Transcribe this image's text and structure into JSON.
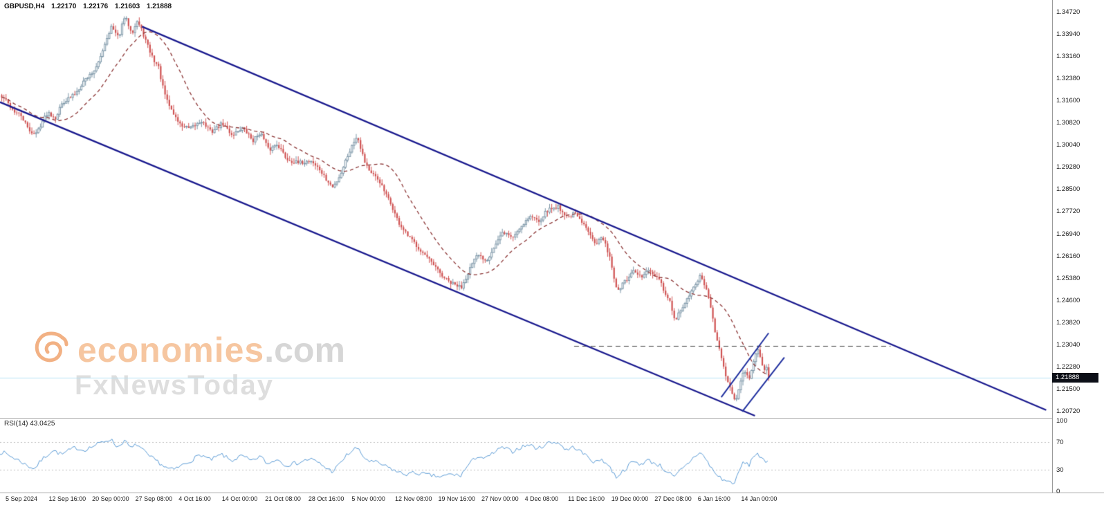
{
  "header": {
    "symbol_timeframe": "GBPUSD,H4",
    "open": "1.22170",
    "high": "1.22176",
    "low": "1.21603",
    "close": "1.21888"
  },
  "watermark": {
    "brand": "economies",
    "suffix": ".com",
    "tagline": "FxNewsToday"
  },
  "colors": {
    "bull_candle": "#7d97a8",
    "bull_fill": "#ffffff",
    "bear_candle": "#cf5252",
    "ma_line": "#8b3434",
    "channel_line": "#1a1a8e",
    "trendline": "#1e2e9e",
    "hline_dashed": "#474747",
    "rsi_line": "#5b9bd5",
    "rsi_level": "#bbbbbb",
    "current_price_line": "#b7e1f3",
    "badge_bg": "#0c0f17",
    "axis_text": "#1a1a1a"
  },
  "chart_data": {
    "type": "bar",
    "subtype": "candlestick",
    "title": "GBPUSD H4 with descending channel, dashed moving average and RSI(14)",
    "symbol": "GBPUSD",
    "timeframe": "H4",
    "current_price_label": "1.21888",
    "ohlc_current": {
      "open": 1.2217,
      "high": 1.22176,
      "low": 1.21603,
      "close": 1.21888
    },
    "y_range": [
      1.2072,
      1.3472
    ],
    "y_tick_labels": [
      "1.34720",
      "1.33940",
      "1.33160",
      "1.32380",
      "1.31600",
      "1.30820",
      "1.30040",
      "1.29280",
      "1.28500",
      "1.27720",
      "1.26940",
      "1.26160",
      "1.25380",
      "1.24600",
      "1.23820",
      "1.23040",
      "1.22280",
      "1.21500",
      "1.20720"
    ],
    "x_tick_labels": [
      "5 Sep 2024",
      "12 Sep 16:00",
      "20 Sep 00:00",
      "27 Sep 08:00",
      "4 Oct 16:00",
      "14 Oct 00:00",
      "21 Oct 08:00",
      "28 Oct 16:00",
      "5 Nov 00:00",
      "12 Nov 08:00",
      "19 Nov 16:00",
      "27 Nov 00:00",
      "4 Dec 08:00",
      "11 Dec 16:00",
      "19 Dec 00:00",
      "27 Dec 08:00",
      "6 Jan 16:00",
      "14 Jan 00:00"
    ],
    "x_span_frac": 0.7315,
    "price_path": [
      [
        0.003,
        1.317
      ],
      [
        0.012,
        1.3125
      ],
      [
        0.02,
        1.3105
      ],
      [
        0.026,
        1.306
      ],
      [
        0.033,
        1.304
      ],
      [
        0.04,
        1.309
      ],
      [
        0.045,
        1.312
      ],
      [
        0.052,
        1.31
      ],
      [
        0.059,
        1.3155
      ],
      [
        0.066,
        1.317
      ],
      [
        0.072,
        1.319
      ],
      [
        0.079,
        1.323
      ],
      [
        0.086,
        1.3255
      ],
      [
        0.092,
        1.328
      ],
      [
        0.098,
        1.335
      ],
      [
        0.105,
        1.342
      ],
      [
        0.112,
        1.338
      ],
      [
        0.118,
        1.3455
      ],
      [
        0.125,
        1.34
      ],
      [
        0.13,
        1.344
      ],
      [
        0.136,
        1.339
      ],
      [
        0.141,
        1.334
      ],
      [
        0.146,
        1.33
      ],
      [
        0.15,
        1.328
      ],
      [
        0.154,
        1.321
      ],
      [
        0.158,
        1.316
      ],
      [
        0.165,
        1.311
      ],
      [
        0.171,
        1.3075
      ],
      [
        0.18,
        1.306
      ],
      [
        0.191,
        1.309
      ],
      [
        0.2,
        1.305
      ],
      [
        0.211,
        1.308
      ],
      [
        0.22,
        1.304
      ],
      [
        0.23,
        1.3065
      ],
      [
        0.24,
        1.302
      ],
      [
        0.247,
        1.305
      ],
      [
        0.255,
        1.2985
      ],
      [
        0.263,
        1.301
      ],
      [
        0.272,
        1.2955
      ],
      [
        0.283,
        1.294
      ],
      [
        0.295,
        1.295
      ],
      [
        0.303,
        1.292
      ],
      [
        0.31,
        1.288
      ],
      [
        0.316,
        1.2855
      ],
      [
        0.323,
        1.29
      ],
      [
        0.329,
        1.296
      ],
      [
        0.339,
        1.304
      ],
      [
        0.346,
        1.295
      ],
      [
        0.352,
        1.2905
      ],
      [
        0.36,
        1.288
      ],
      [
        0.365,
        1.284
      ],
      [
        0.372,
        1.279
      ],
      [
        0.378,
        1.2735
      ],
      [
        0.386,
        1.269
      ],
      [
        0.395,
        1.2655
      ],
      [
        0.403,
        1.262
      ],
      [
        0.411,
        1.2585
      ],
      [
        0.42,
        1.2545
      ],
      [
        0.428,
        1.252
      ],
      [
        0.438,
        1.2505
      ],
      [
        0.446,
        1.257
      ],
      [
        0.454,
        1.262
      ],
      [
        0.462,
        1.26
      ],
      [
        0.47,
        1.265
      ],
      [
        0.478,
        1.27
      ],
      [
        0.487,
        1.268
      ],
      [
        0.495,
        1.272
      ],
      [
        0.503,
        1.2755
      ],
      [
        0.512,
        1.274
      ],
      [
        0.52,
        1.2775
      ],
      [
        0.53,
        1.279
      ],
      [
        0.539,
        1.275
      ],
      [
        0.546,
        1.2765
      ],
      [
        0.553,
        1.273
      ],
      [
        0.56,
        1.27
      ],
      [
        0.566,
        1.266
      ],
      [
        0.572,
        1.268
      ],
      [
        0.579,
        1.262
      ],
      [
        0.586,
        1.249
      ],
      [
        0.595,
        1.253
      ],
      [
        0.602,
        1.256
      ],
      [
        0.609,
        1.254
      ],
      [
        0.616,
        1.2565
      ],
      [
        0.622,
        1.2545
      ],
      [
        0.628,
        1.252
      ],
      [
        0.632,
        1.248
      ],
      [
        0.637,
        1.245
      ],
      [
        0.641,
        1.2385
      ],
      [
        0.646,
        1.242
      ],
      [
        0.651,
        1.245
      ],
      [
        0.656,
        1.248
      ],
      [
        0.661,
        1.252
      ],
      [
        0.666,
        1.2545
      ],
      [
        0.671,
        1.25
      ],
      [
        0.676,
        1.242
      ],
      [
        0.681,
        1.232
      ],
      [
        0.686,
        1.225
      ],
      [
        0.691,
        1.218
      ],
      [
        0.695,
        1.2135
      ],
      [
        0.699,
        1.2105
      ],
      [
        0.703,
        1.216
      ],
      [
        0.707,
        1.222
      ],
      [
        0.712,
        1.219
      ],
      [
        0.716,
        1.2245
      ],
      [
        0.72,
        1.2285
      ],
      [
        0.724,
        1.224
      ],
      [
        0.728,
        1.221
      ],
      [
        0.7315,
        1.21888
      ]
    ],
    "moving_average": {
      "style": "dashed",
      "period": 22
    },
    "overlays": {
      "channel_upper": {
        "x1": 0.135,
        "p1": 1.342,
        "x2": 0.995,
        "p2": 1.2075
      },
      "channel_lower": {
        "x1": 0.0,
        "p1": 1.3155,
        "x2": 0.718,
        "p2": 1.2055
      },
      "trendline_a": {
        "x1": 0.686,
        "p1": 1.212,
        "x2": 0.731,
        "p2": 1.2345
      },
      "trendline_b": {
        "x1": 0.706,
        "p1": 1.207,
        "x2": 0.746,
        "p2": 1.226
      },
      "hline_dashed": {
        "price": 1.23,
        "x1": 0.546,
        "x2": 0.847
      },
      "current_price_line": 1.21888
    },
    "rsi": {
      "label": "RSI(14) 43.0425",
      "period": 14,
      "value": 43.0425,
      "range": [
        0,
        100
      ],
      "levels": [
        70,
        30
      ],
      "axis_labels": [
        "100",
        "70",
        "30",
        "0"
      ],
      "path": [
        [
          0.003,
          55
        ],
        [
          0.012,
          48
        ],
        [
          0.02,
          42
        ],
        [
          0.026,
          36
        ],
        [
          0.033,
          32
        ],
        [
          0.04,
          45
        ],
        [
          0.05,
          58
        ],
        [
          0.059,
          52
        ],
        [
          0.066,
          58
        ],
        [
          0.072,
          62
        ],
        [
          0.079,
          58
        ],
        [
          0.086,
          62
        ],
        [
          0.092,
          66
        ],
        [
          0.098,
          70
        ],
        [
          0.105,
          74
        ],
        [
          0.112,
          62
        ],
        [
          0.118,
          72
        ],
        [
          0.125,
          60
        ],
        [
          0.13,
          67
        ],
        [
          0.136,
          58
        ],
        [
          0.141,
          50
        ],
        [
          0.15,
          42
        ],
        [
          0.158,
          33
        ],
        [
          0.165,
          30
        ],
        [
          0.171,
          35
        ],
        [
          0.18,
          42
        ],
        [
          0.191,
          52
        ],
        [
          0.2,
          44
        ],
        [
          0.211,
          52
        ],
        [
          0.22,
          43
        ],
        [
          0.23,
          50
        ],
        [
          0.24,
          42
        ],
        [
          0.247,
          50
        ],
        [
          0.255,
          38
        ],
        [
          0.263,
          46
        ],
        [
          0.272,
          37
        ],
        [
          0.283,
          40
        ],
        [
          0.295,
          46
        ],
        [
          0.303,
          40
        ],
        [
          0.31,
          33
        ],
        [
          0.316,
          28
        ],
        [
          0.323,
          38
        ],
        [
          0.329,
          50
        ],
        [
          0.339,
          62
        ],
        [
          0.346,
          48
        ],
        [
          0.352,
          42
        ],
        [
          0.36,
          40
        ],
        [
          0.365,
          36
        ],
        [
          0.372,
          32
        ],
        [
          0.378,
          27
        ],
        [
          0.386,
          24
        ],
        [
          0.395,
          26
        ],
        [
          0.403,
          24
        ],
        [
          0.411,
          22
        ],
        [
          0.42,
          20
        ],
        [
          0.428,
          24
        ],
        [
          0.438,
          22
        ],
        [
          0.446,
          38
        ],
        [
          0.454,
          50
        ],
        [
          0.462,
          46
        ],
        [
          0.47,
          55
        ],
        [
          0.478,
          62
        ],
        [
          0.487,
          56
        ],
        [
          0.495,
          62
        ],
        [
          0.503,
          66
        ],
        [
          0.512,
          60
        ],
        [
          0.52,
          68
        ],
        [
          0.53,
          70
        ],
        [
          0.539,
          58
        ],
        [
          0.546,
          63
        ],
        [
          0.553,
          55
        ],
        [
          0.56,
          48
        ],
        [
          0.566,
          40
        ],
        [
          0.572,
          46
        ],
        [
          0.579,
          36
        ],
        [
          0.586,
          20
        ],
        [
          0.595,
          32
        ],
        [
          0.602,
          42
        ],
        [
          0.609,
          38
        ],
        [
          0.616,
          44
        ],
        [
          0.622,
          40
        ],
        [
          0.628,
          36
        ],
        [
          0.632,
          30
        ],
        [
          0.637,
          26
        ],
        [
          0.641,
          18
        ],
        [
          0.646,
          28
        ],
        [
          0.651,
          34
        ],
        [
          0.656,
          42
        ],
        [
          0.661,
          50
        ],
        [
          0.666,
          55
        ],
        [
          0.671,
          46
        ],
        [
          0.676,
          34
        ],
        [
          0.681,
          24
        ],
        [
          0.686,
          18
        ],
        [
          0.691,
          14
        ],
        [
          0.695,
          13
        ],
        [
          0.699,
          12
        ],
        [
          0.703,
          28
        ],
        [
          0.707,
          42
        ],
        [
          0.712,
          36
        ],
        [
          0.716,
          48
        ],
        [
          0.72,
          55
        ],
        [
          0.724,
          46
        ],
        [
          0.728,
          40
        ],
        [
          0.7315,
          43.04
        ]
      ]
    }
  }
}
